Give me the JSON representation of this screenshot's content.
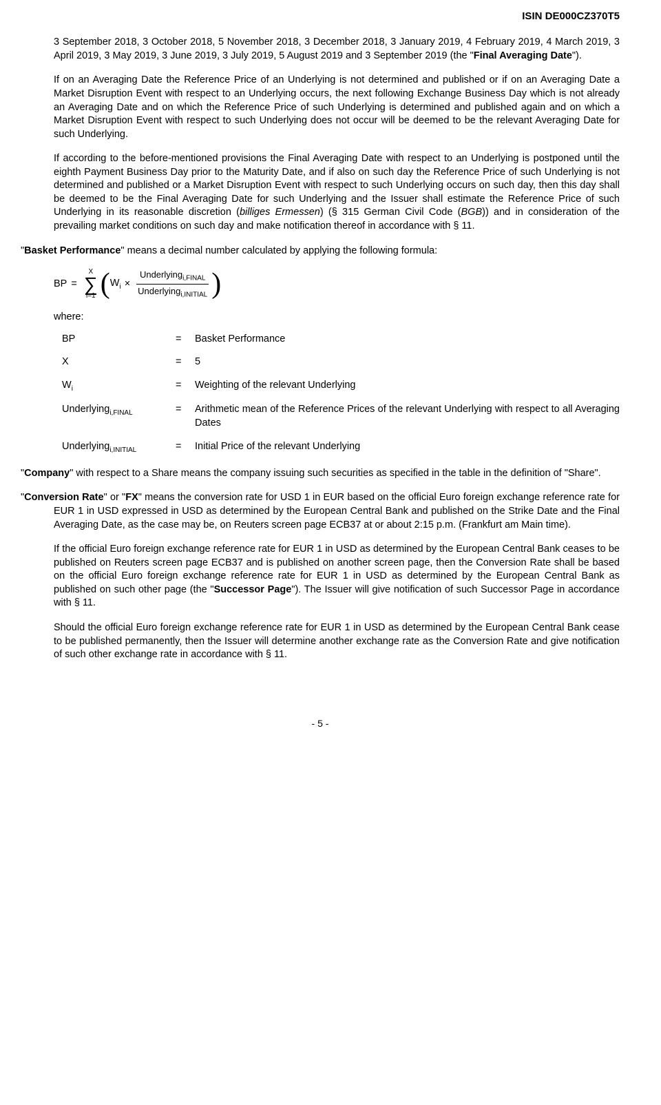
{
  "header": {
    "isin": "ISIN DE000CZ370T5"
  },
  "p1": {
    "t1": "3 September 2018, 3 October 2018, 5 November 2018, 3 December 2018, 3 January 2019, 4 February 2019, 4 March 2019, 3 April 2019, 3 May 2019, 3 June 2019, 3 July 2019, 5 August 2019 and 3 September 2019 (the \"",
    "bold": "Final Averaging Date",
    "t2": "\")."
  },
  "p2": "If on an Averaging Date the Reference Price of an Underlying is not determined and published or if on an Averaging Date a Market Disruption Event with respect to an Underlying occurs, the next following Exchange Business Day which is not already an Averaging Date and on which the Reference Price of such Underlying is determined and published again and on which a Market Disruption Event with respect to such Underlying does not occur will be deemed to be the relevant Averaging Date for such Underlying.",
  "p3": {
    "t1": "If according to the before-mentioned provisions the Final Averaging Date with respect to an Underlying is postponed until the eighth Payment Business Day prior to the Maturity Date, and if also on such day the Reference Price of such Underlying is not determined and published or a Market Disruption Event with respect to such Underlying occurs on such day, then this day shall be deemed to be the Final Averaging Date for such Underlying and the Issuer shall estimate the Reference Price of such Underlying in its reasonable discretion (",
    "i1": "billiges Ermessen",
    "t2": ") (§ 315 German Civil Code (",
    "i2": "BGB",
    "t3": ")) and in consideration of the prevailing market conditions on such day and make notification thereof in accordance with § 11."
  },
  "p4": {
    "t1": "\"",
    "bold": "Basket Performance",
    "t2": "\" means a decimal number calculated by applying the following formula:"
  },
  "formula": {
    "lhs": "BP",
    "eq": "=",
    "sum_top": "X",
    "sum_bot": "i=1",
    "weight": "W",
    "weight_sub": "i",
    "times": "×",
    "num_base": "Underlying",
    "num_sub": "i,FINAL",
    "den_base": "Underlying",
    "den_sub": "i,INITIAL"
  },
  "where_label": "where:",
  "defs": [
    {
      "term": "BP",
      "sub": "",
      "desc": "Basket Performance"
    },
    {
      "term": "X",
      "sub": "",
      "desc": "5"
    },
    {
      "term": "W",
      "sub": "i",
      "desc": "Weighting of the relevant Underlying"
    },
    {
      "term": "Underlying",
      "sub": "i,FINAL",
      "desc": "Arithmetic mean of the Reference Prices of the relevant Underlying with respect to all Averaging Dates"
    },
    {
      "term": "Underlying",
      "sub": "i,INITIAL",
      "desc": "Initial Price of the relevant Underlying"
    }
  ],
  "eq_sign": "=",
  "p5": {
    "t1": "\"",
    "bold": "Company",
    "t2": "\" with respect to a Share means the company issuing such securities as specified in the table in the definition of \"Share\"."
  },
  "p6": {
    "t1": "\"",
    "bold1": "Conversion Rate",
    "t2": "\" or \"",
    "bold2": "FX",
    "t3": "\" means the conversion rate for USD 1 in EUR based on the official Euro foreign exchange reference rate for EUR 1 in USD expressed in USD as determined by the European Central Bank and published on the Strike Date and the Final Averaging Date, as the case may be, on Reuters screen page ECB37 at or about 2:15 p.m. (Frankfurt am Main time)."
  },
  "p7": {
    "t1": "If the official Euro foreign exchange reference rate for EUR 1 in USD as determined by the European Central Bank ceases to be published on Reuters screen page ECB37 and is published on another screen page, then the Conversion Rate shall be based on the official Euro foreign exchange reference rate for EUR 1 in USD as determined by the European Central Bank as published on such other page (the \"",
    "bold": "Successor Page",
    "t2": "\").  The Issuer will give notification of such Successor Page in accordance with § 11."
  },
  "p8": "Should the official Euro foreign exchange reference rate for EUR 1 in USD as determined by the European Central Bank cease to be published permanently, then the Issuer will determine another exchange rate as the Conversion Rate and give notification of such other exchange rate in accordance with § 11.",
  "footer": "- 5 -"
}
